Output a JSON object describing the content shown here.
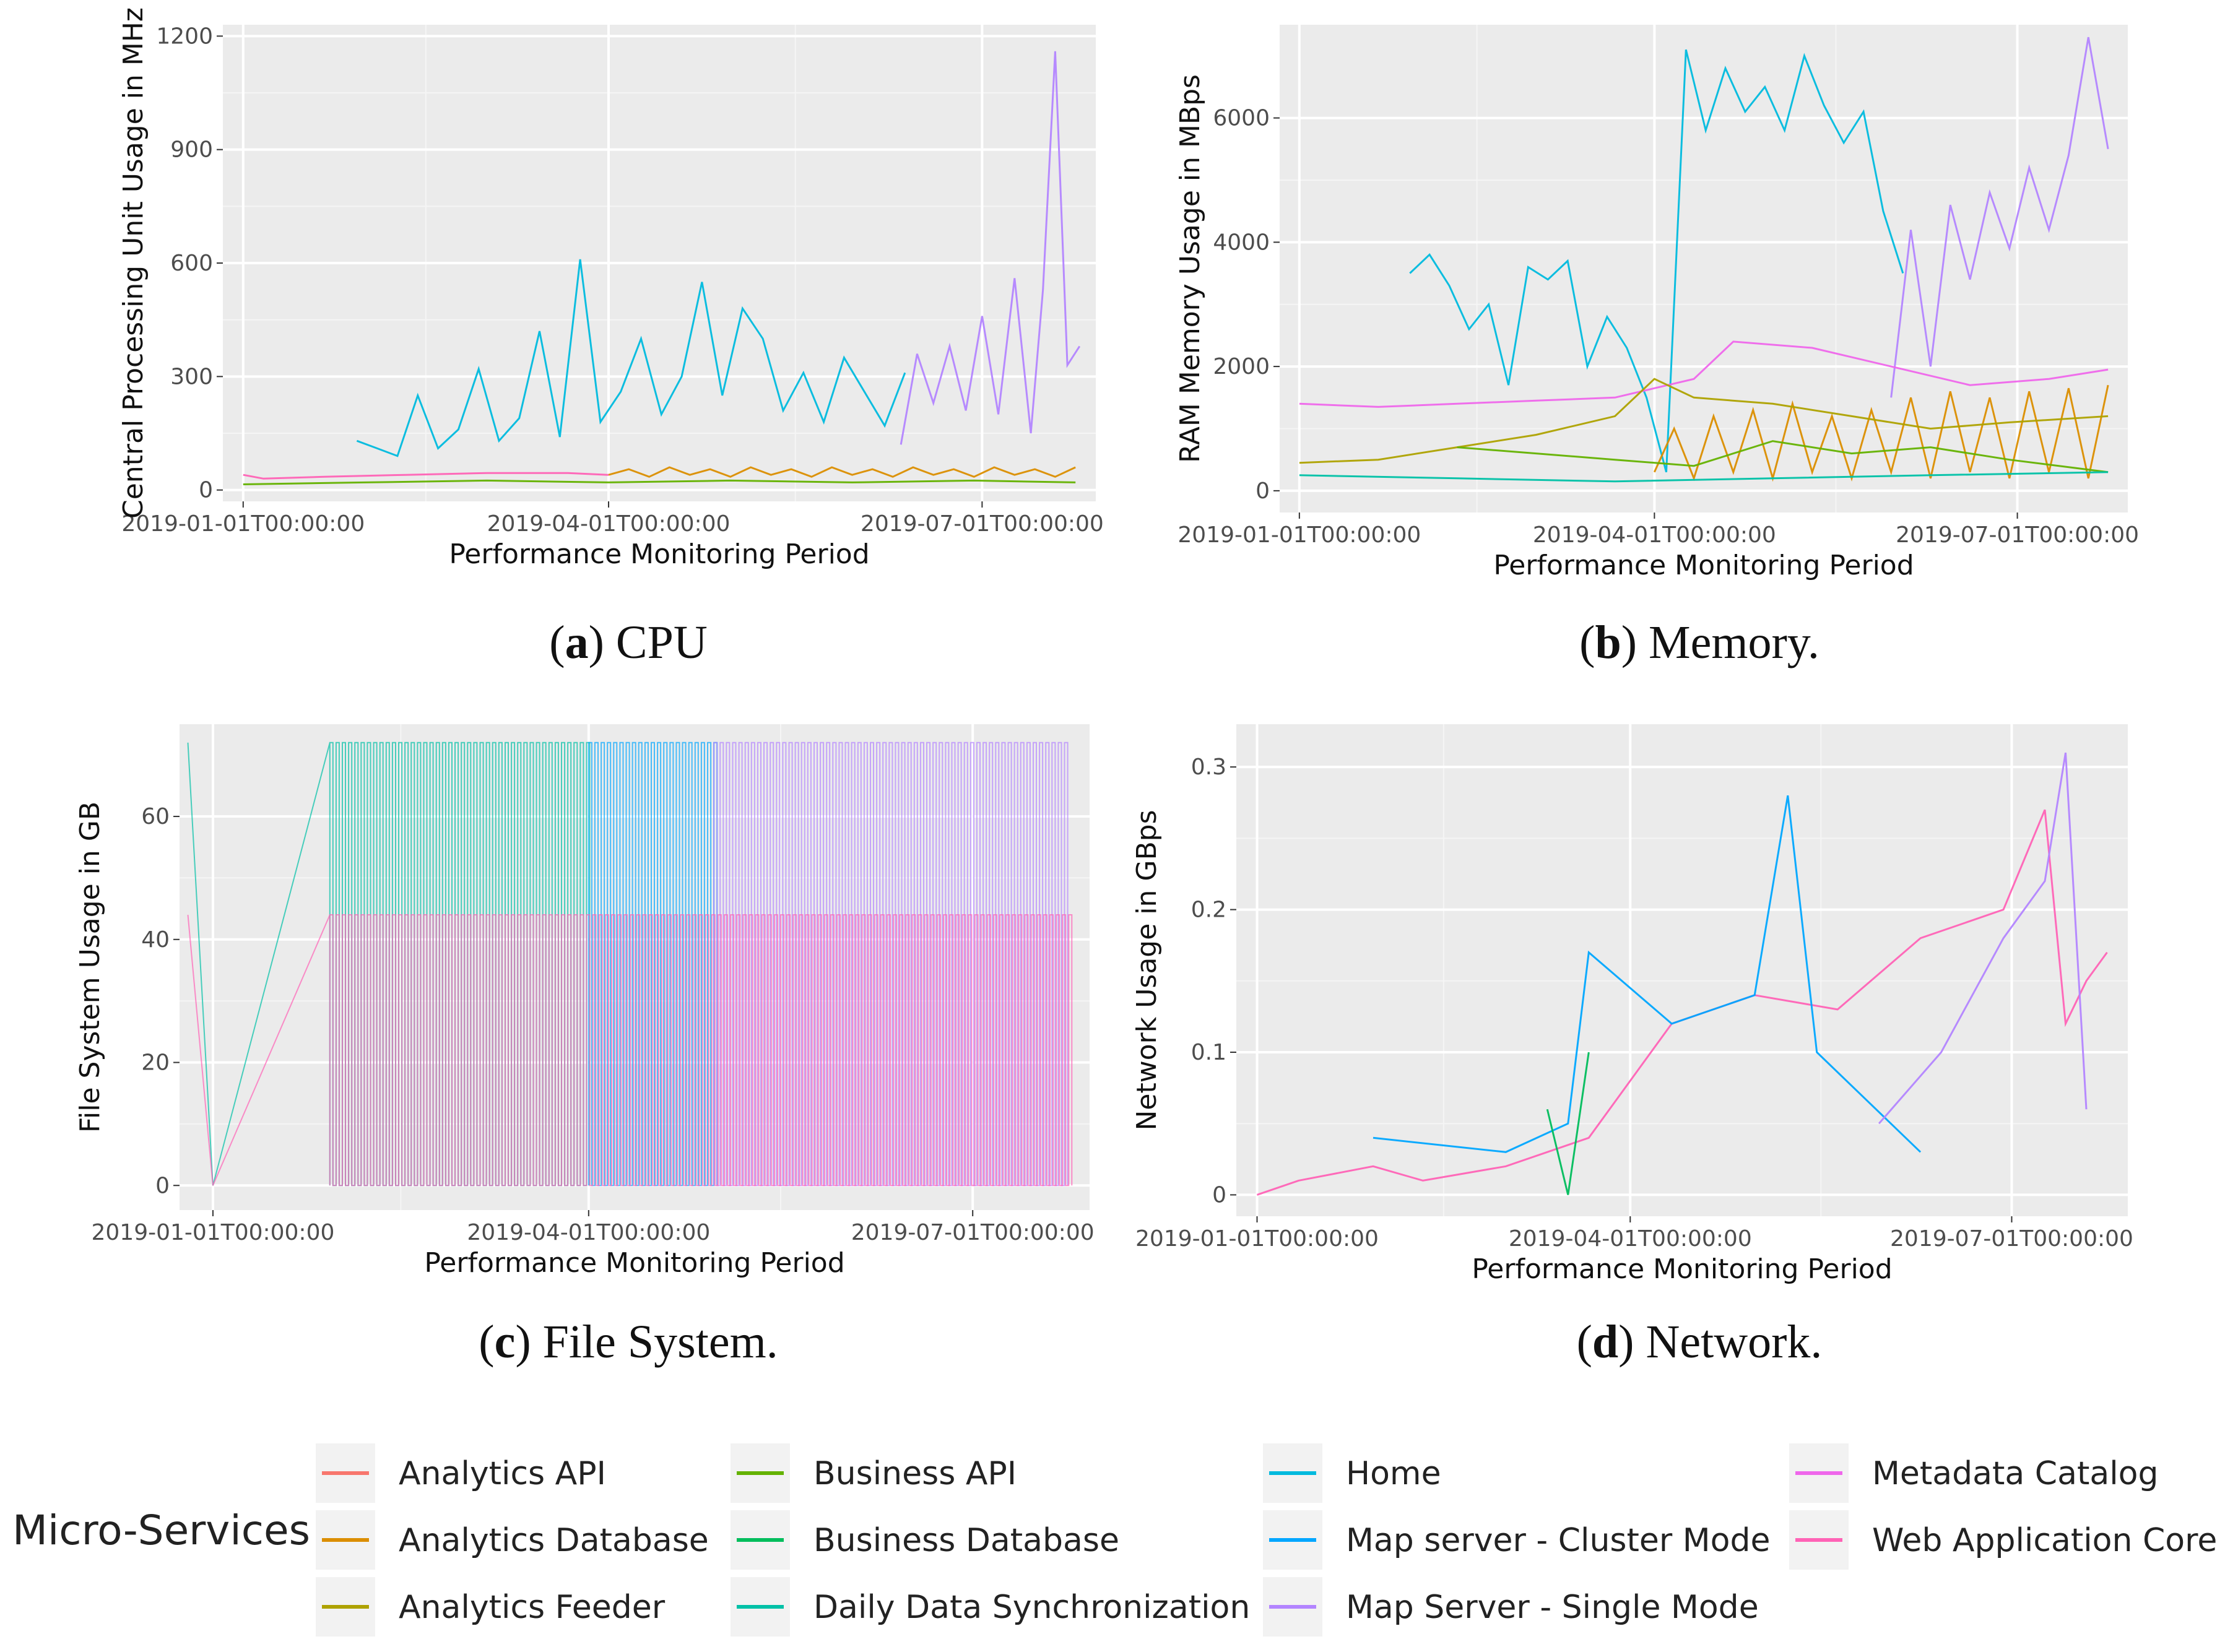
{
  "figure": {
    "captions": [
      {
        "letter": "a",
        "text": "CPU"
      },
      {
        "letter": "b",
        "text": "Memory."
      },
      {
        "letter": "c",
        "text": "File System."
      },
      {
        "letter": "d",
        "text": "Network."
      }
    ]
  },
  "services": [
    {
      "name": "Analytics API",
      "color": "#F8766D"
    },
    {
      "name": "Analytics Database",
      "color": "#DB8E00"
    },
    {
      "name": "Analytics Feeder",
      "color": "#AEA200"
    },
    {
      "name": "Business API",
      "color": "#64B200"
    },
    {
      "name": "Business Database",
      "color": "#00BD5C"
    },
    {
      "name": "Daily Data Synchronization",
      "color": "#00C1A7"
    },
    {
      "name": "Home",
      "color": "#00BADE"
    },
    {
      "name": "Map server - Cluster Mode",
      "color": "#00A6FF"
    },
    {
      "name": "Map Server - Single Mode",
      "color": "#B385FF"
    },
    {
      "name": "Metadata Catalog",
      "color": "#EF67EB"
    },
    {
      "name": "Web Application Core",
      "color": "#FF63B6"
    }
  ],
  "legend": {
    "title": "Micro-Services"
  },
  "chart_data": [
    {
      "id": "cpu",
      "type": "line",
      "ylabel": "Central Processing Unit Usage in MHz",
      "xlabel": "Performance Monitoring Period",
      "x_tick_labels": [
        "2019-01-01T00:00:00",
        "2019-04-01T00:00:00",
        "2019-07-01T00:00:00"
      ],
      "y_ticks": [
        0,
        300,
        600,
        900,
        1200
      ],
      "ylim": [
        -30,
        1230
      ],
      "xlim": [
        -5,
        210
      ],
      "series": [
        {
          "service": "Home",
          "x": [
            28,
            33,
            38,
            43,
            48,
            53,
            58,
            63,
            68,
            73,
            78,
            83,
            88,
            93,
            98,
            103,
            108,
            113,
            118,
            123,
            128,
            133,
            138,
            143,
            148,
            153,
            158,
            163
          ],
          "y": [
            130,
            110,
            90,
            250,
            110,
            160,
            320,
            130,
            190,
            420,
            140,
            610,
            180,
            260,
            400,
            200,
            300,
            550,
            250,
            480,
            400,
            210,
            310,
            180,
            350,
            260,
            170,
            310
          ]
        },
        {
          "service": "Map Server - Single Mode",
          "x": [
            162,
            166,
            170,
            174,
            178,
            182,
            186,
            190,
            194,
            197,
            200,
            203,
            206
          ],
          "y": [
            120,
            360,
            230,
            380,
            210,
            460,
            200,
            560,
            150,
            530,
            1160,
            330,
            380
          ]
        },
        {
          "service": "Web Application Core",
          "x": [
            0,
            5,
            20,
            40,
            60,
            80,
            90
          ],
          "y": [
            40,
            30,
            35,
            40,
            45,
            45,
            40
          ]
        },
        {
          "service": "Analytics Database",
          "x": [
            90,
            95,
            100,
            105,
            110,
            115,
            120,
            125,
            130,
            135,
            140,
            145,
            150,
            155,
            160,
            165,
            170,
            175,
            180,
            185,
            190,
            195,
            200,
            205
          ],
          "y": [
            40,
            55,
            35,
            60,
            40,
            55,
            35,
            60,
            40,
            55,
            35,
            60,
            40,
            55,
            35,
            60,
            40,
            55,
            35,
            60,
            40,
            55,
            35,
            60
          ]
        },
        {
          "service": "Business API",
          "x": [
            0,
            30,
            60,
            90,
            120,
            150,
            180,
            205
          ],
          "y": [
            15,
            20,
            25,
            20,
            25,
            20,
            25,
            20
          ]
        }
      ]
    },
    {
      "id": "memory",
      "type": "line",
      "ylabel": "RAM Memory Usage in MBps",
      "xlabel": "Performance Monitoring Period",
      "x_tick_labels": [
        "2019-01-01T00:00:00",
        "2019-04-01T00:00:00",
        "2019-07-01T00:00:00"
      ],
      "y_ticks": [
        0,
        2000,
        4000,
        6000
      ],
      "ylim": [
        -350,
        7500
      ],
      "xlim": [
        -5,
        210
      ],
      "series": [
        {
          "service": "Home",
          "x": [
            28,
            33,
            38,
            43,
            48,
            53,
            58,
            63,
            68,
            73,
            78,
            83,
            88,
            93,
            98,
            103,
            108,
            113,
            118,
            123,
            128,
            133,
            138,
            143,
            148,
            153
          ],
          "y": [
            3500,
            3800,
            3300,
            2600,
            3000,
            1700,
            3600,
            3400,
            3700,
            2000,
            2800,
            2300,
            1500,
            300,
            7100,
            5800,
            6800,
            6100,
            6500,
            5800,
            7000,
            6200,
            5600,
            6100,
            4500,
            3500
          ]
        },
        {
          "service": "Map Server - Single Mode",
          "x": [
            150,
            155,
            160,
            165,
            170,
            175,
            180,
            185,
            190,
            195,
            200,
            205
          ],
          "y": [
            1500,
            4200,
            2000,
            4600,
            3400,
            4800,
            3900,
            5200,
            4200,
            5400,
            7300,
            5500
          ]
        },
        {
          "service": "Metadata Catalog",
          "x": [
            0,
            20,
            40,
            60,
            80,
            100,
            110,
            130,
            150,
            170,
            190,
            205
          ],
          "y": [
            1400,
            1350,
            1400,
            1450,
            1500,
            1800,
            2400,
            2300,
            2000,
            1700,
            1800,
            1950
          ]
        },
        {
          "service": "Analytics Database",
          "x": [
            90,
            95,
            100,
            105,
            110,
            115,
            120,
            125,
            130,
            135,
            140,
            145,
            150,
            155,
            160,
            165,
            170,
            175,
            180,
            185,
            190,
            195,
            200,
            205
          ],
          "y": [
            300,
            1000,
            200,
            1200,
            300,
            1300,
            200,
            1400,
            300,
            1200,
            200,
            1300,
            300,
            1500,
            200,
            1600,
            300,
            1500,
            200,
            1600,
            300,
            1650,
            200,
            1700
          ]
        },
        {
          "service": "Analytics Feeder",
          "x": [
            0,
            20,
            40,
            60,
            80,
            90,
            100,
            120,
            140,
            160,
            180,
            205
          ],
          "y": [
            450,
            500,
            700,
            900,
            1200,
            1800,
            1500,
            1400,
            1200,
            1000,
            1100,
            1200
          ]
        },
        {
          "service": "Business API",
          "x": [
            40,
            60,
            80,
            100,
            120,
            140,
            160,
            180,
            205
          ],
          "y": [
            700,
            600,
            500,
            400,
            800,
            600,
            700,
            500,
            300
          ]
        },
        {
          "service": "Daily Data Synchronization",
          "x": [
            0,
            40,
            80,
            120,
            160,
            205
          ],
          "y": [
            250,
            200,
            150,
            200,
            250,
            300
          ]
        }
      ]
    },
    {
      "id": "filesystem",
      "type": "line",
      "ylabel": "File System Usage in GB",
      "xlabel": "Performance Monitoring Period",
      "x_tick_labels": [
        "2019-01-01T00:00:00",
        "2019-04-01T00:00:00",
        "2019-07-01T00:00:00"
      ],
      "y_ticks": [
        0,
        20,
        40,
        60
      ],
      "ylim": [
        -4,
        75
      ],
      "xlim": [
        -8,
        210
      ],
      "series": [
        {
          "service": "Daily Data Synchronization",
          "x": [
            -6,
            0,
            28,
            90
          ],
          "y": [
            72,
            0,
            72,
            72
          ]
        },
        {
          "service": "Map server - Cluster Mode",
          "x": [
            90,
            120
          ],
          "y": [
            72,
            72
          ]
        },
        {
          "service": "Map Server - Single Mode",
          "x": [
            120,
            205
          ],
          "y": [
            72,
            72
          ]
        },
        {
          "service": "Web Application Core",
          "x": [
            -6,
            0,
            28,
            205
          ],
          "y": [
            44,
            0,
            44,
            44
          ]
        }
      ]
    },
    {
      "id": "network",
      "type": "line",
      "ylabel": "Network Usage in GBps",
      "xlabel": "Performance Monitoring Period",
      "x_tick_labels": [
        "2019-01-01T00:00:00",
        "2019-04-01T00:00:00",
        "2019-07-01T00:00:00"
      ],
      "y_ticks": [
        0.0,
        0.1,
        0.2,
        0.3
      ],
      "ylim": [
        -0.015,
        0.33
      ],
      "xlim": [
        -5,
        210
      ],
      "series": [
        {
          "service": "Web Application Core",
          "x": [
            0,
            10,
            28,
            40,
            60,
            80,
            100,
            120,
            140,
            160,
            180,
            190,
            195,
            200,
            205
          ],
          "y": [
            0.0,
            0.01,
            0.02,
            0.01,
            0.02,
            0.04,
            0.12,
            0.14,
            0.13,
            0.18,
            0.2,
            0.27,
            0.12,
            0.15,
            0.17
          ]
        },
        {
          "service": "Map server - Cluster Mode",
          "x": [
            28,
            60,
            75,
            80,
            100,
            120,
            128,
            135,
            160
          ],
          "y": [
            0.04,
            0.03,
            0.05,
            0.17,
            0.12,
            0.14,
            0.28,
            0.1,
            0.03
          ]
        },
        {
          "service": "Business Database",
          "x": [
            70,
            75,
            80
          ],
          "y": [
            0.06,
            0.0,
            0.1
          ]
        },
        {
          "service": "Map Server - Single Mode",
          "x": [
            150,
            165,
            180,
            190,
            195,
            200
          ],
          "y": [
            0.05,
            0.1,
            0.18,
            0.22,
            0.31,
            0.06
          ]
        }
      ]
    }
  ]
}
